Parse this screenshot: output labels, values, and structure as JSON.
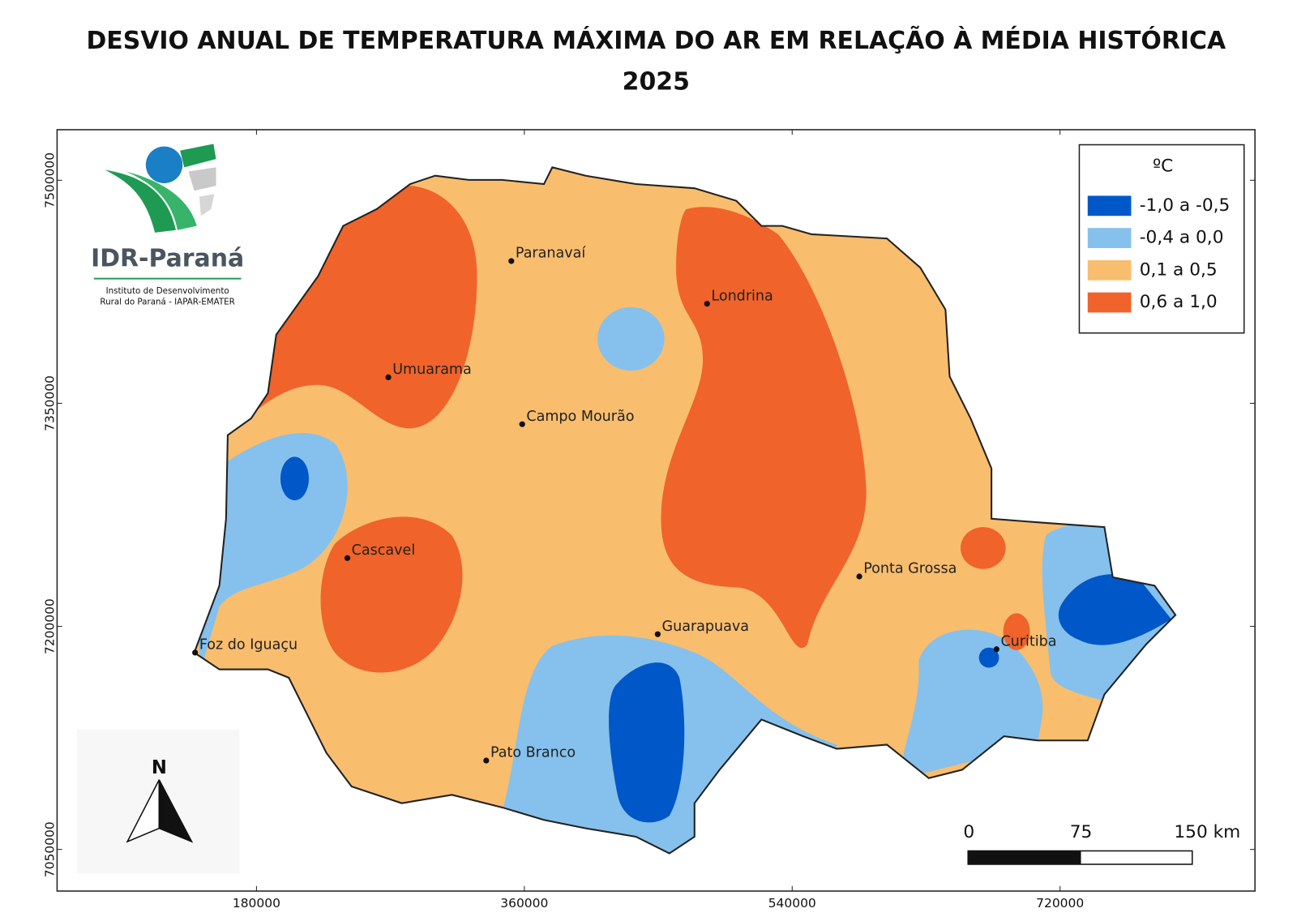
{
  "header": {
    "title_line1": "DESVIO ANUAL DE TEMPERATURA MÁXIMA DO AR EM RELAÇÃO À MÉDIA HISTÓRICA",
    "title_line2": "2025"
  },
  "map": {
    "xlim": [
      46000,
      851000
    ],
    "ylim": [
      7022000,
      7534000
    ],
    "xticks": [
      180000,
      360000,
      540000,
      720000
    ],
    "yticks": [
      7050000,
      7200000,
      7350000,
      7500000
    ],
    "cities": [
      "Paranavaí",
      "Londrina",
      "Umuarama",
      "Campo Mourão",
      "Cascavel",
      "Ponta Grossa",
      "Guarapuava",
      "Foz do Iguaçu",
      "Curitiba",
      "Pato Branco"
    ]
  },
  "legend": {
    "title": "ºC",
    "items": [
      {
        "label": "-1,0 a -0,5",
        "color": "#0057c8"
      },
      {
        "label": "-0,4 a 0,0",
        "color": "#85c1ec"
      },
      {
        "label": "0,1 a 0,5",
        "color": "#f9bd6e"
      },
      {
        "label": "0,6 a 1,0",
        "color": "#f0632a"
      }
    ]
  },
  "scale_bar": {
    "labels": [
      "0",
      "75",
      "150 km"
    ]
  },
  "north_arrow": {
    "label": "N"
  },
  "logo": {
    "name": "IDR-Paraná",
    "line1": "Instituto de Desenvolvimento",
    "line2": "Rural do Paraná - IAPAR-EMATER"
  }
}
